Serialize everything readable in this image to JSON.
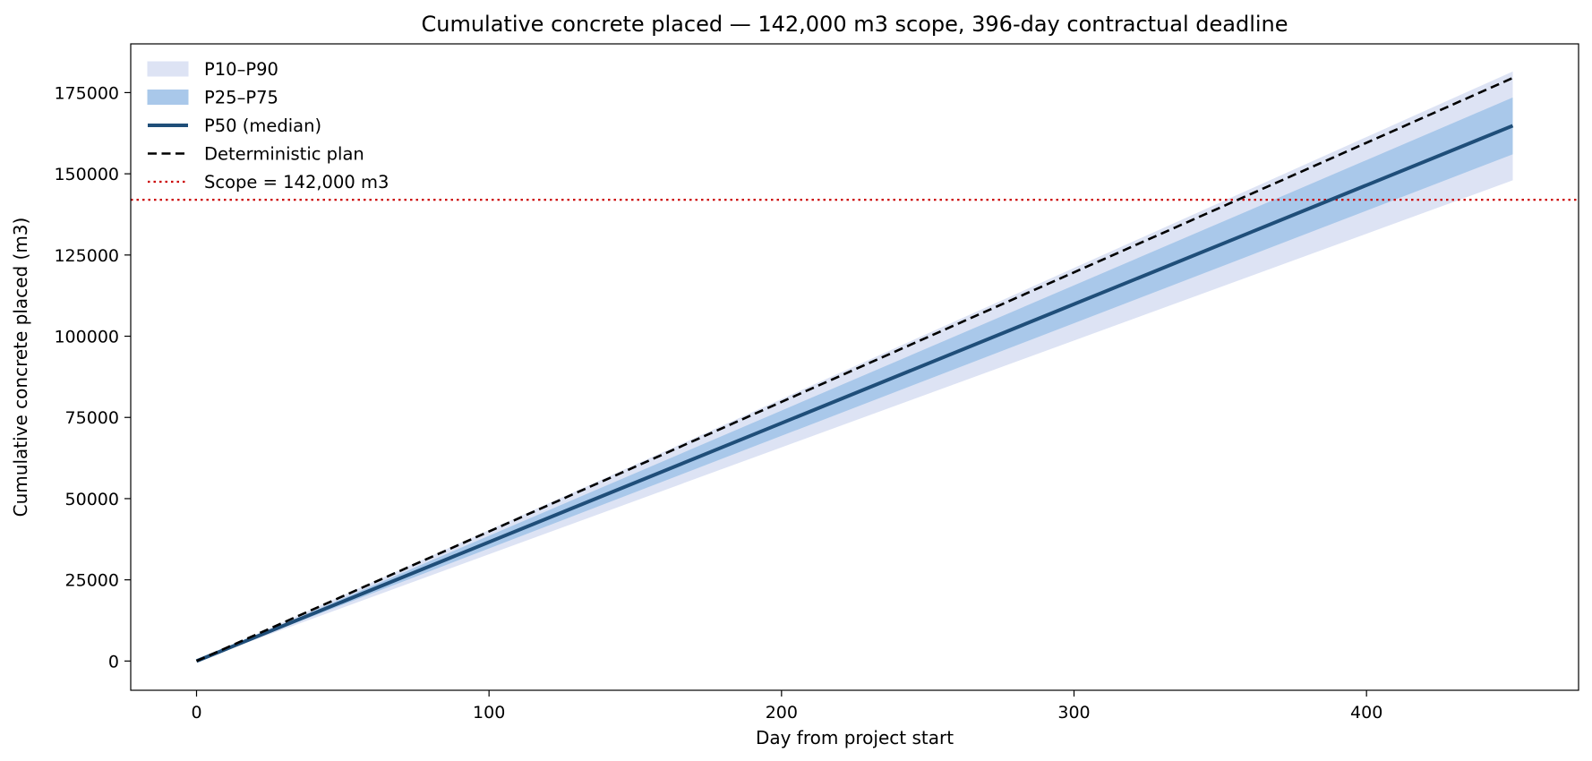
{
  "chart_data": {
    "type": "line",
    "title": "Cumulative concrete placed — 142,000 m3 scope, 396-day contractual deadline",
    "xlabel": "Day from project start",
    "ylabel": "Cumulative concrete placed  (m3)",
    "xlim": [
      -22.5,
      472.5
    ],
    "ylim": [
      -9000,
      190000
    ],
    "xticks": [
      0,
      100,
      200,
      300,
      400
    ],
    "yticks": [
      0,
      25000,
      50000,
      75000,
      100000,
      125000,
      150000,
      175000
    ],
    "grid": false,
    "legend_position": "top-left",
    "x": [
      0,
      450
    ],
    "bands": [
      {
        "name": "P10–P90",
        "color": "#dde3f4",
        "lower": [
          0,
          148000
        ],
        "upper": [
          0,
          181500
        ]
      },
      {
        "name": "P25–P75",
        "color": "#a9c8ea",
        "lower": [
          0,
          156000
        ],
        "upper": [
          0,
          173500
        ]
      }
    ],
    "series": [
      {
        "name": "P50 (median)",
        "color": "#1f4e79",
        "style": "solid",
        "values": [
          0,
          164800
        ]
      },
      {
        "name": "Deterministic plan",
        "color": "#000000",
        "style": "dashed",
        "values": [
          0,
          179500
        ]
      }
    ],
    "reference_lines": [
      {
        "name": "Scope = 142,000 m3",
        "color": "#cc0000",
        "style": "dotted",
        "y": 142000
      }
    ]
  }
}
